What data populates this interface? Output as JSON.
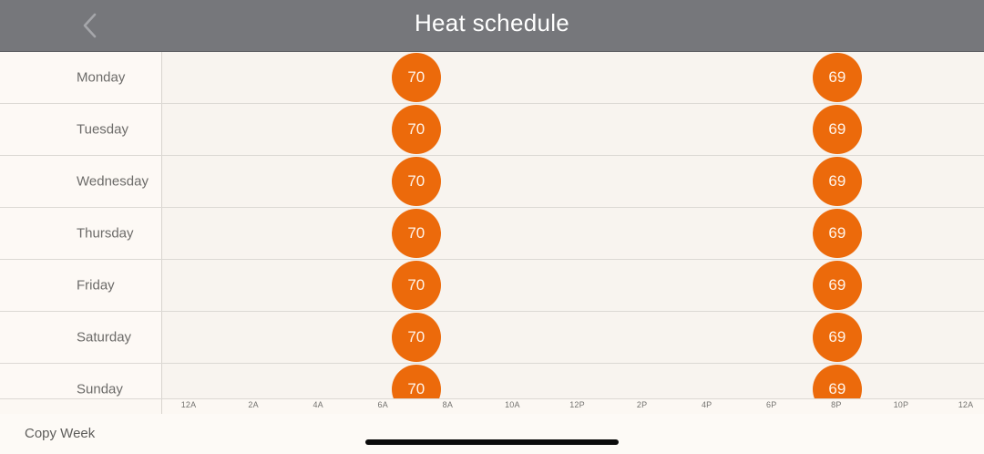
{
  "header": {
    "title": "Heat schedule",
    "back_icon": "chevron-left-icon"
  },
  "schedule": {
    "days": [
      {
        "name": "Monday",
        "setpoints": [
          {
            "time_hours": 7.0,
            "temp": "70"
          },
          {
            "time_hours": 20.0,
            "temp": "69"
          }
        ]
      },
      {
        "name": "Tuesday",
        "setpoints": [
          {
            "time_hours": 7.0,
            "temp": "70"
          },
          {
            "time_hours": 20.0,
            "temp": "69"
          }
        ]
      },
      {
        "name": "Wednesday",
        "setpoints": [
          {
            "time_hours": 7.0,
            "temp": "70"
          },
          {
            "time_hours": 20.0,
            "temp": "69"
          }
        ]
      },
      {
        "name": "Thursday",
        "setpoints": [
          {
            "time_hours": 7.0,
            "temp": "70"
          },
          {
            "time_hours": 20.0,
            "temp": "69"
          }
        ]
      },
      {
        "name": "Friday",
        "setpoints": [
          {
            "time_hours": 7.0,
            "temp": "70"
          },
          {
            "time_hours": 20.0,
            "temp": "69"
          }
        ]
      },
      {
        "name": "Saturday",
        "setpoints": [
          {
            "time_hours": 7.0,
            "temp": "70"
          },
          {
            "time_hours": 20.0,
            "temp": "69"
          }
        ]
      },
      {
        "name": "Sunday",
        "setpoints": [
          {
            "time_hours": 7.0,
            "temp": "70"
          },
          {
            "time_hours": 20.0,
            "temp": "69"
          }
        ]
      }
    ],
    "time_axis": [
      {
        "label": "12A",
        "hour": 0
      },
      {
        "label": "2A",
        "hour": 2
      },
      {
        "label": "4A",
        "hour": 4
      },
      {
        "label": "6A",
        "hour": 6
      },
      {
        "label": "8A",
        "hour": 8
      },
      {
        "label": "10A",
        "hour": 10
      },
      {
        "label": "12P",
        "hour": 12
      },
      {
        "label": "2P",
        "hour": 14
      },
      {
        "label": "4P",
        "hour": 16
      },
      {
        "label": "6P",
        "hour": 18
      },
      {
        "label": "8P",
        "hour": 20
      },
      {
        "label": "10P",
        "hour": 22
      },
      {
        "label": "12A",
        "hour": 24
      }
    ],
    "setpoint_color": "#ec6a0b"
  },
  "footer": {
    "copy_week_label": "Copy Week"
  }
}
